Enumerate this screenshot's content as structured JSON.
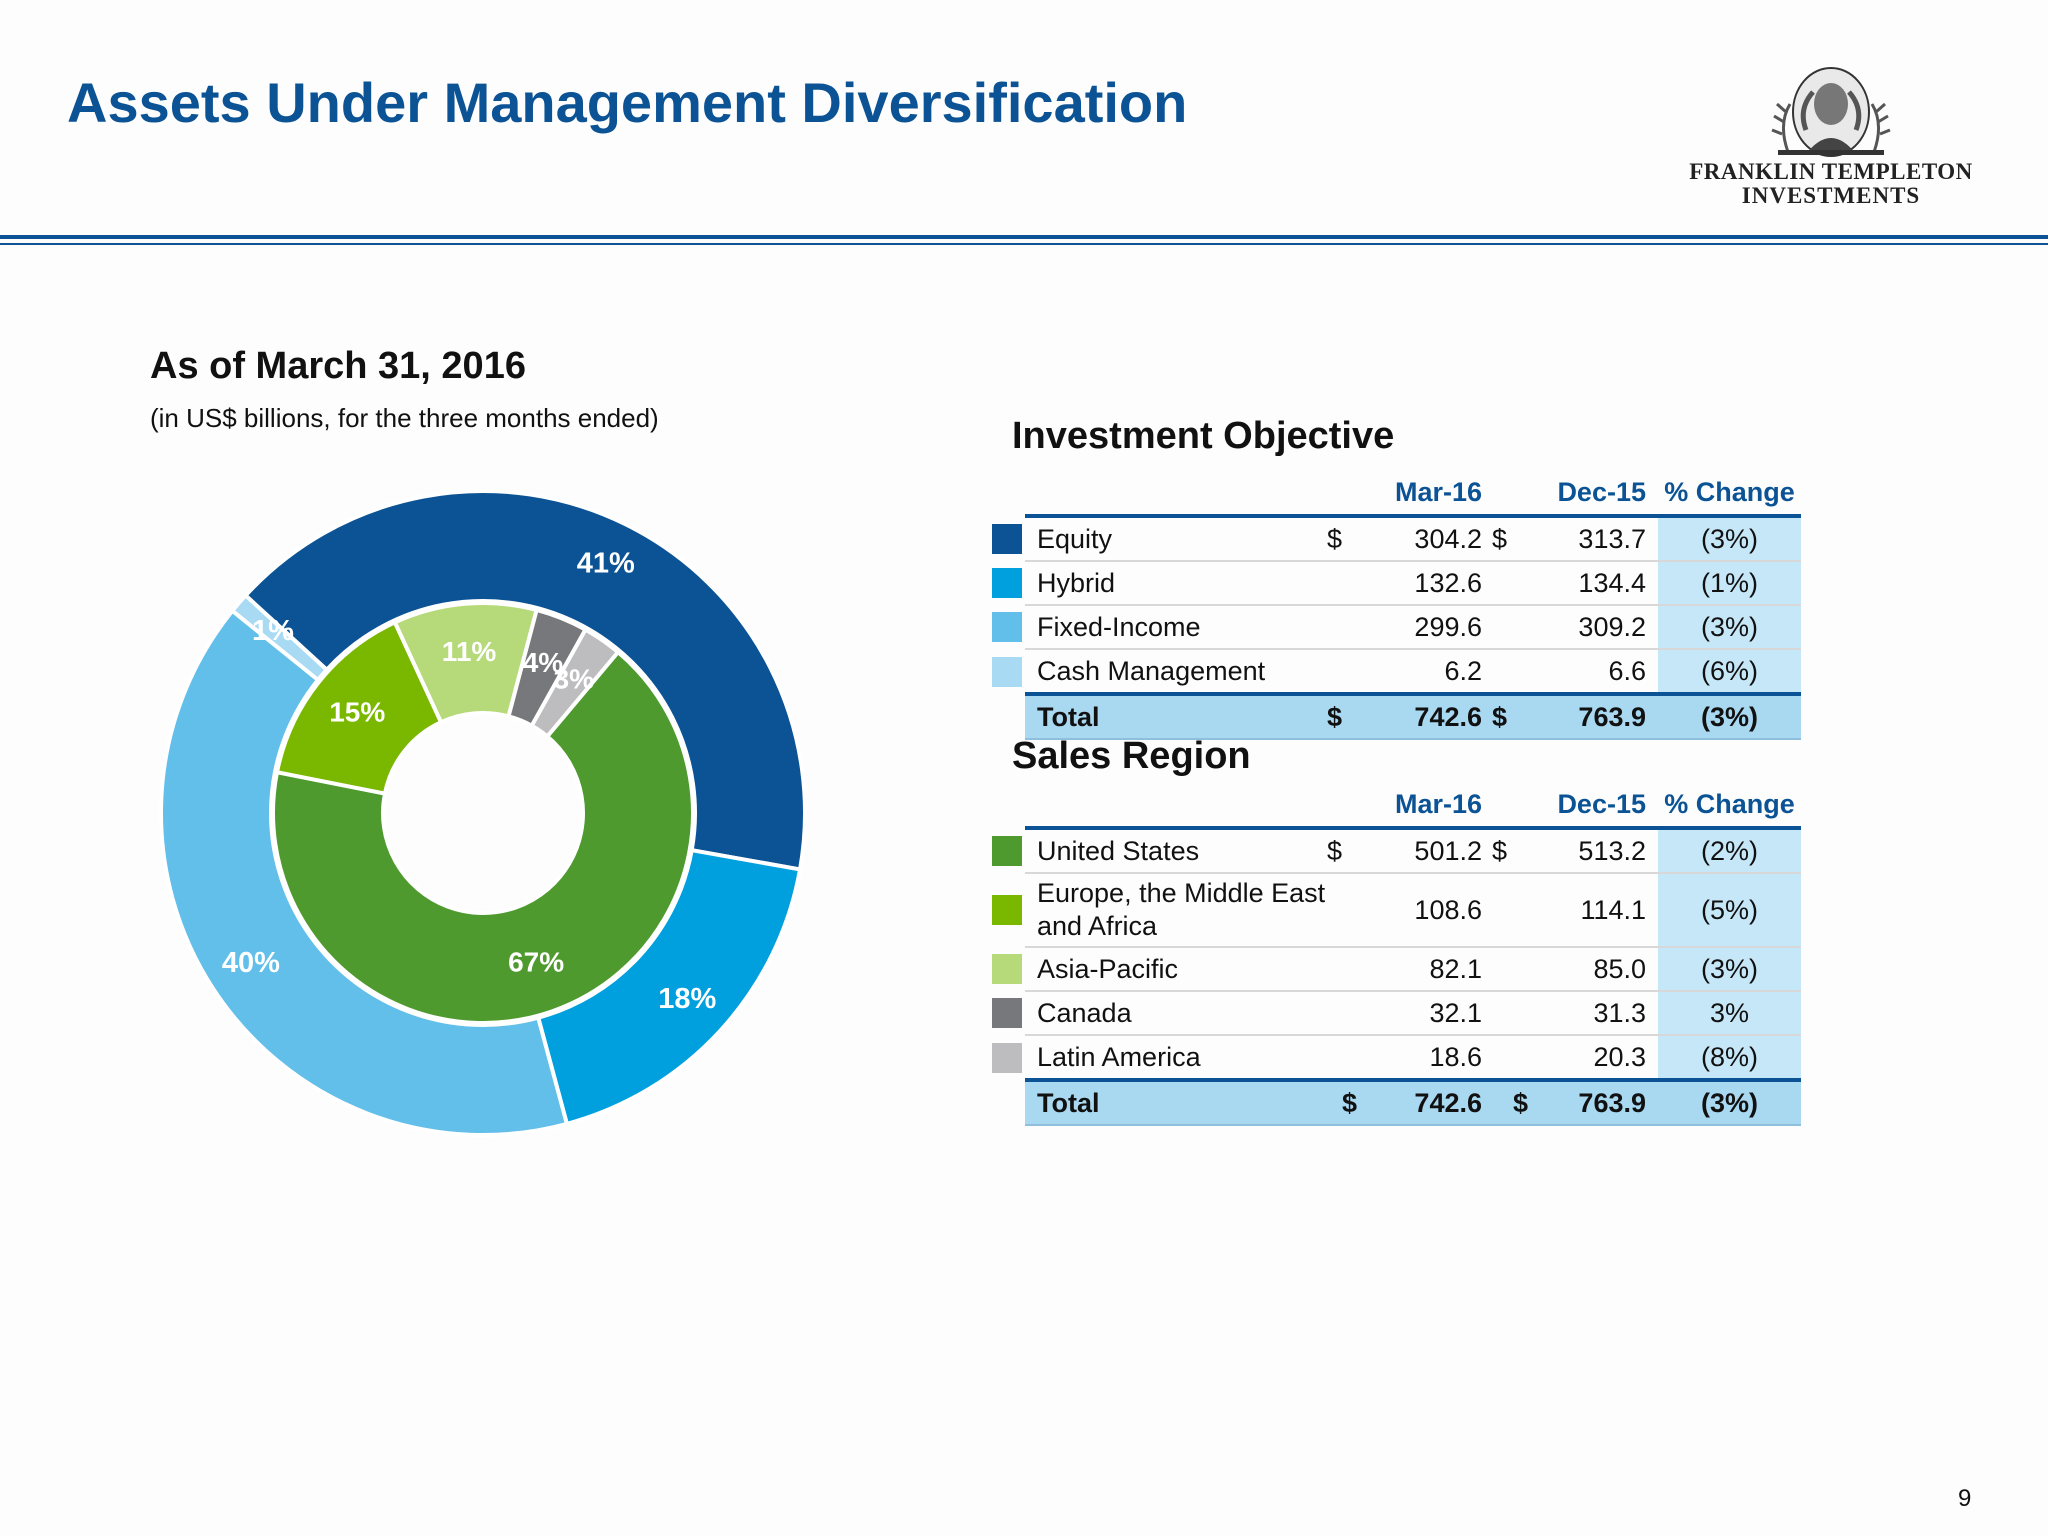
{
  "slide": {
    "title": "Assets Under Management Diversification",
    "page_number": "9"
  },
  "logo": {
    "line1": "FRANKLIN TEMPLETON",
    "line2": "INVESTMENTS"
  },
  "left": {
    "title": "As of March 31, 2016",
    "subtitle": "(in US$ billions, for the three months ended)"
  },
  "investment_objective": {
    "title": "Investment Objective",
    "headers": [
      "Mar-16",
      "Dec-15",
      "% Change"
    ],
    "rows": [
      {
        "name": "Equity",
        "cur1": "$",
        "mar16": "304.2",
        "cur2": "$",
        "dec15": "313.7",
        "change": "(3%)",
        "color": "#0b5394"
      },
      {
        "name": "Hybrid",
        "cur1": "",
        "mar16": "132.6",
        "cur2": "",
        "dec15": "134.4",
        "change": "(1%)",
        "color": "#00a0df"
      },
      {
        "name": "Fixed-Income",
        "cur1": "",
        "mar16": "299.6",
        "cur2": "",
        "dec15": "309.2",
        "change": "(3%)",
        "color": "#62bfea"
      },
      {
        "name": "Cash Management",
        "cur1": "",
        "mar16": "6.2",
        "cur2": "",
        "dec15": "6.6",
        "change": "(6%)",
        "color": "#a8daf4"
      }
    ],
    "total": {
      "name": "Total",
      "cur1": "$",
      "mar16": "742.6",
      "cur2": "$",
      "dec15": "763.9",
      "change": "(3%)"
    }
  },
  "sales_region": {
    "title": "Sales Region",
    "headers": [
      "Mar-16",
      "Dec-15",
      "% Change"
    ],
    "rows": [
      {
        "name": "United States",
        "cur1": "$",
        "mar16": "501.2",
        "cur2": "$",
        "dec15": "513.2",
        "change": "(2%)",
        "color": "#4e9a2f"
      },
      {
        "name": "Europe, the Middle East and Africa",
        "cur1": "",
        "mar16": "108.6",
        "cur2": "",
        "dec15": "114.1",
        "change": "(5%)",
        "color": "#7ab800"
      },
      {
        "name": "Asia-Pacific",
        "cur1": "",
        "mar16": "82.1",
        "cur2": "",
        "dec15": "85.0",
        "change": "(3%)",
        "color": "#b6d97a"
      },
      {
        "name": "Canada",
        "cur1": "",
        "mar16": "32.1",
        "cur2": "",
        "dec15": "31.3",
        "change": "3%",
        "color": "#77787b"
      },
      {
        "name": "Latin America",
        "cur1": "",
        "mar16": "18.6",
        "cur2": "",
        "dec15": "20.3",
        "change": "(8%)",
        "color": "#bdbdbf"
      }
    ],
    "total": {
      "name": "Total",
      "cur1": "$",
      "mar16": "742.6",
      "cur2": "$",
      "dec15": "763.9",
      "change": "(3%)"
    }
  },
  "chart_data": {
    "type": "pie",
    "title": "As of March 31, 2016",
    "subtitle": "(in US$ billions, for the three months ended)",
    "series": [
      {
        "ring": "outer",
        "categories": [
          "Equity",
          "Hybrid",
          "Fixed-Income",
          "Cash Management"
        ],
        "values": [
          41,
          18,
          40,
          1
        ],
        "labels": [
          "41%",
          "18%",
          "40%",
          "1%"
        ],
        "colors": [
          "#0b5394",
          "#00a0df",
          "#62bfea",
          "#a8daf4"
        ]
      },
      {
        "ring": "inner",
        "categories": [
          "United States",
          "Europe, the Middle East and Africa",
          "Asia-Pacific",
          "Canada",
          "Latin America"
        ],
        "values": [
          67,
          15,
          11,
          4,
          3
        ],
        "labels": [
          "67%",
          "15%",
          "11%",
          "4%",
          "3%"
        ],
        "colors": [
          "#4e9a2f",
          "#7ab800",
          "#b6d97a",
          "#77787b",
          "#bdbdbf"
        ]
      }
    ]
  }
}
